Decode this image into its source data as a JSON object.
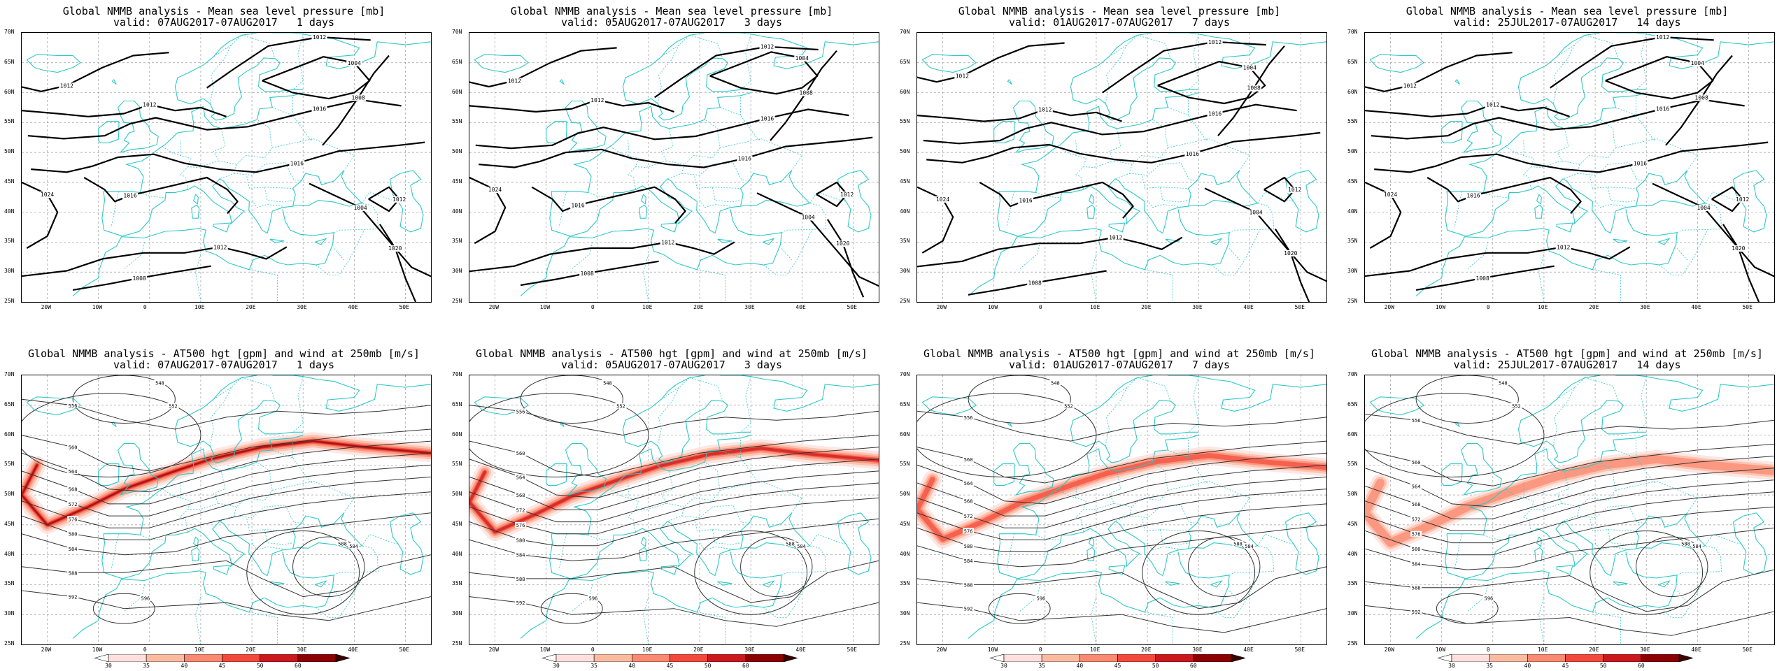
{
  "panels": [
    {
      "row": 0,
      "col": 0,
      "title": "Global NMMB analysis - Mean sea level pressure [mb]",
      "subtitle": "valid: 07AUG2017-07AUG2017   1 days",
      "kind": "mslp"
    },
    {
      "row": 0,
      "col": 1,
      "title": "Global NMMB analysis - Mean sea level pressure [mb]",
      "subtitle": "valid: 05AUG2017-07AUG2017   3 days",
      "kind": "mslp"
    },
    {
      "row": 0,
      "col": 2,
      "title": "Global NMMB analysis - Mean sea level pressure [mb]",
      "subtitle": "valid: 01AUG2017-07AUG2017   7 days",
      "kind": "mslp"
    },
    {
      "row": 0,
      "col": 3,
      "title": "Global NMMB analysis - Mean sea level pressure [mb]",
      "subtitle": "valid: 25JUL2017-07AUG2017   14 days",
      "kind": "mslp"
    },
    {
      "row": 1,
      "col": 0,
      "title": "Global NMMB analysis - AT500 hgt [gpm] and wind at 250mb [m/s]",
      "subtitle": "valid: 07AUG2017-07AUG2017   1 days",
      "kind": "z500"
    },
    {
      "row": 1,
      "col": 1,
      "title": "Global NMMB analysis - AT500 hgt [gpm] and wind at 250mb [m/s]",
      "subtitle": "valid: 05AUG2017-07AUG2017   3 days",
      "kind": "z500"
    },
    {
      "row": 1,
      "col": 2,
      "title": "Global NMMB analysis - AT500 hgt [gpm] and wind at 250mb [m/s]",
      "subtitle": "valid: 01AUG2017-07AUG2017   7 days",
      "kind": "z500"
    },
    {
      "row": 1,
      "col": 3,
      "title": "Global NMMB analysis - AT500 hgt [gpm] and wind at 250mb [m/s]",
      "subtitle": "valid: 25JUL2017-07AUG2017   14 days",
      "kind": "z500"
    }
  ],
  "axes": {
    "lat_labels": [
      "70N",
      "65N",
      "60N",
      "55N",
      "50N",
      "45N",
      "40N",
      "35N",
      "30N",
      "25N"
    ],
    "lon_labels": [
      "20W",
      "10W",
      "0",
      "10E",
      "20E",
      "30E",
      "40E",
      "50E"
    ],
    "lon_range": [
      -25,
      55
    ],
    "lat_range": [
      25,
      70
    ]
  },
  "mslp_labels": [
    "1016",
    "1012",
    "1008",
    "1004",
    "1020",
    "1024"
  ],
  "z500_labels": [
    "548",
    "552",
    "556",
    "560",
    "564",
    "568",
    "572",
    "576",
    "580",
    "584",
    "588",
    "592",
    "596"
  ],
  "colorbar": {
    "ticks": [
      "30",
      "35",
      "40",
      "45",
      "50",
      "60"
    ],
    "colors": [
      "#ffffff",
      "#fde0dd",
      "#fcbba1",
      "#fb8a72",
      "#f2493b",
      "#cb181d",
      "#8b0000",
      "#3a0000"
    ]
  },
  "colors": {
    "coast": "#2ec8c8",
    "contour": "#000000",
    "grid": "#9a9a9a",
    "jet": "#e31a1c"
  }
}
